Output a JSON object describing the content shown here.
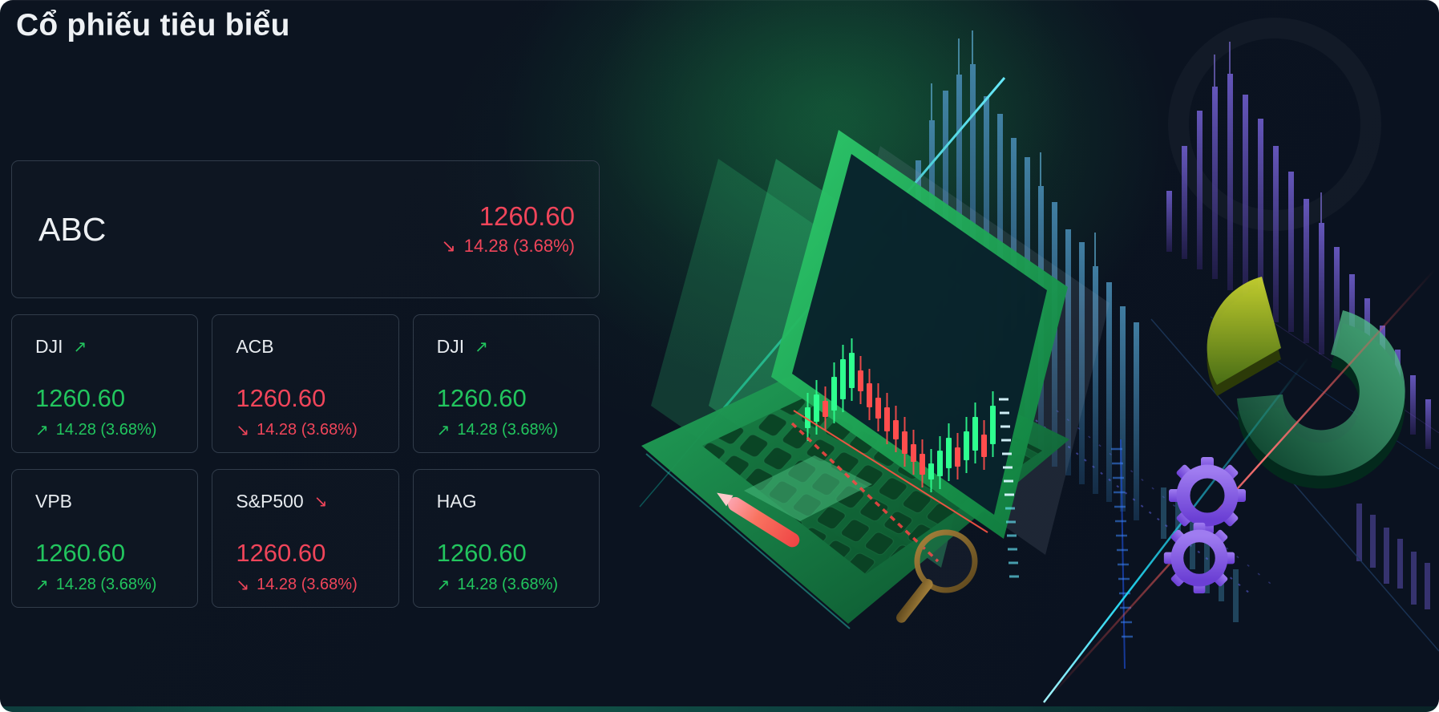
{
  "page": {
    "title": "Cổ phiếu tiêu biểu"
  },
  "featured_card": {
    "symbol": "ABC",
    "price": "1260.60",
    "change": "14.28 (3.68%)",
    "direction": "down"
  },
  "ticker_cards": [
    {
      "symbol": "DJI",
      "symbol_arrow": true,
      "price": "1260.60",
      "change": "14.28 (3.68%)",
      "direction": "up"
    },
    {
      "symbol": "ACB",
      "symbol_arrow": false,
      "price": "1260.60",
      "change": "14.28 (3.68%)",
      "direction": "down"
    },
    {
      "symbol": "DJI",
      "symbol_arrow": true,
      "price": "1260.60",
      "change": "14.28 (3.68%)",
      "direction": "up"
    },
    {
      "symbol": "VPB",
      "symbol_arrow": false,
      "price": "1260.60",
      "change": "14.28 (3.68%)",
      "direction": "up"
    },
    {
      "symbol": "S&P500",
      "symbol_arrow": true,
      "price": "1260.60",
      "change": "14.28 (3.68%)",
      "direction": "down"
    },
    {
      "symbol": "HAG",
      "symbol_arrow": false,
      "price": "1260.60",
      "change": "14.28 (3.68%)",
      "direction": "up"
    }
  ],
  "icons": {
    "up_arrow": "↗",
    "down_arrow": "↘"
  },
  "colors": {
    "up": "#22c55e",
    "down": "#f0455a",
    "background": "#0c1420",
    "card_border": "#313c4a",
    "title_text": "#eef1f4"
  },
  "illustration": {
    "elements": [
      "laptop",
      "candlestick-chart",
      "bar-chart-blue",
      "bar-chart-purple",
      "pie-chart",
      "gears",
      "magnifier",
      "pencil",
      "trend-lines"
    ]
  }
}
